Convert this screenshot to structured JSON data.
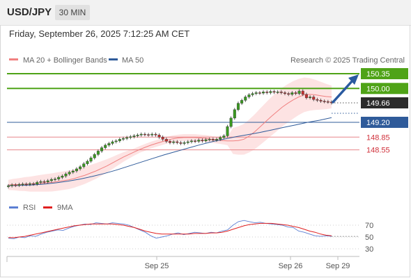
{
  "header": {
    "symbol": "USD/JPY",
    "timeframe": "30 MIN",
    "datetime": "Friday, September 26, 2025 7:12:25 AM CET"
  },
  "legend": {
    "items": [
      {
        "label": "MA 20 + Bollinger Bands",
        "color": "#f08080"
      },
      {
        "label": "MA 50",
        "color": "#2f5b9a"
      }
    ],
    "credit": "Research © 2025 Trading Central"
  },
  "rsi_legend": {
    "items": [
      {
        "label": "RSI",
        "color": "#5b7fd3"
      },
      {
        "label": "9MA",
        "color": "#e02020"
      }
    ]
  },
  "colors": {
    "green": "#4fa317",
    "blue": "#2f5b9a",
    "red": "#e8868a",
    "red_text": "#d0303a",
    "candle_up": "#3a9a20",
    "candle_down": "#c43030",
    "band_fill": "#fde0e0",
    "arrow": "#2a5aa0"
  },
  "chart_data": {
    "type": "candlestick",
    "title": "USD/JPY",
    "x_ticks": [
      "Sep 25",
      "Sep 26",
      "Sep 29"
    ],
    "price_range": [
      147.55,
      150.55
    ],
    "last_price": 149.66,
    "levels": [
      {
        "value": 150.35,
        "label": "150.35",
        "color": "green"
      },
      {
        "value": 150.0,
        "label": "150.00",
        "color": "green"
      },
      {
        "value": 149.66,
        "label": "149.66",
        "color": "current"
      },
      {
        "value": 149.2,
        "label": "149.20",
        "color": "blue"
      },
      {
        "value": 148.85,
        "label": "148.85",
        "color": "red"
      },
      {
        "value": 148.55,
        "label": "148.55",
        "color": "red"
      }
    ],
    "candles_close": [
      147.7,
      147.72,
      147.71,
      147.73,
      147.74,
      147.73,
      147.75,
      147.74,
      147.78,
      147.8,
      147.79,
      147.82,
      147.85,
      147.86,
      147.9,
      147.93,
      147.98,
      148.02,
      148.05,
      148.1,
      148.15,
      148.22,
      148.28,
      148.36,
      148.44,
      148.52,
      148.6,
      148.66,
      148.7,
      148.74,
      148.76,
      148.8,
      148.82,
      148.84,
      148.86,
      148.88,
      148.9,
      148.92,
      148.91,
      148.9,
      148.92,
      148.9,
      148.85,
      148.8,
      148.75,
      148.72,
      148.74,
      148.72,
      148.7,
      148.72,
      148.74,
      148.76,
      148.75,
      148.78,
      148.76,
      148.79,
      148.8,
      148.78,
      148.8,
      148.84,
      148.88,
      149.1,
      149.3,
      149.5,
      149.65,
      149.72,
      149.8,
      149.85,
      149.88,
      149.9,
      149.89,
      149.92,
      149.9,
      149.93,
      149.91,
      149.92,
      149.9,
      149.88,
      149.86,
      149.9,
      149.88,
      149.94,
      149.86,
      149.78,
      149.8,
      149.74,
      149.72,
      149.7,
      149.69,
      149.68,
      149.66
    ],
    "ma20": [
      147.72,
      147.73,
      147.73,
      147.74,
      147.74,
      147.75,
      147.76,
      147.77,
      147.78,
      147.8,
      147.82,
      147.84,
      147.87,
      147.91,
      147.95,
      148.0,
      148.05,
      148.11,
      148.17,
      148.24,
      148.31,
      148.38,
      148.44,
      148.5,
      148.56,
      148.61,
      148.66,
      148.7,
      148.74,
      148.78,
      148.81,
      148.83,
      148.84,
      148.84,
      148.84,
      148.83,
      148.82,
      148.8,
      148.78,
      148.77,
      148.76,
      148.76,
      148.77,
      148.8,
      148.88,
      148.98,
      149.1,
      149.22,
      149.34,
      149.45,
      149.56,
      149.65,
      149.73,
      149.8,
      149.85,
      149.86,
      149.85,
      149.83,
      149.81,
      149.8
    ],
    "ma50": [
      147.7,
      147.71,
      147.72,
      147.74,
      147.77,
      147.81,
      147.86,
      147.92,
      147.99,
      148.07,
      148.16,
      148.25,
      148.34,
      148.43,
      148.51,
      148.59,
      148.67,
      148.74,
      148.8,
      148.86,
      148.91,
      148.96,
      149.02,
      149.08,
      149.14,
      149.2,
      149.25,
      149.31
    ],
    "rsi": {
      "ticks": [
        70,
        50,
        30
      ],
      "range": [
        20,
        80
      ],
      "rsi_values": [
        48,
        47,
        50,
        49,
        52,
        51,
        55,
        58,
        60,
        62,
        61,
        65,
        68,
        70,
        72,
        71,
        74,
        73,
        72,
        74,
        73,
        72,
        70,
        66,
        62,
        58,
        52,
        48,
        50,
        52,
        55,
        57,
        54,
        56,
        58,
        57,
        56,
        58,
        57,
        60,
        62,
        70,
        76,
        78,
        76,
        74,
        75,
        73,
        72,
        71,
        70,
        67,
        66,
        60,
        58,
        55,
        52,
        51,
        52,
        51
      ],
      "ma_values": [
        49,
        49,
        50,
        51,
        53,
        55,
        57,
        59,
        61,
        63,
        65,
        67,
        69,
        70,
        71,
        72,
        72,
        72,
        72,
        72,
        71,
        70,
        68,
        66,
        63,
        60,
        58,
        56,
        55,
        55,
        55,
        55,
        55,
        55,
        56,
        56,
        56,
        57,
        57,
        58,
        60,
        63,
        66,
        69,
        71,
        72,
        73,
        73,
        73,
        72,
        71,
        70,
        68,
        66,
        63,
        60,
        58,
        55,
        53,
        52
      ]
    }
  }
}
